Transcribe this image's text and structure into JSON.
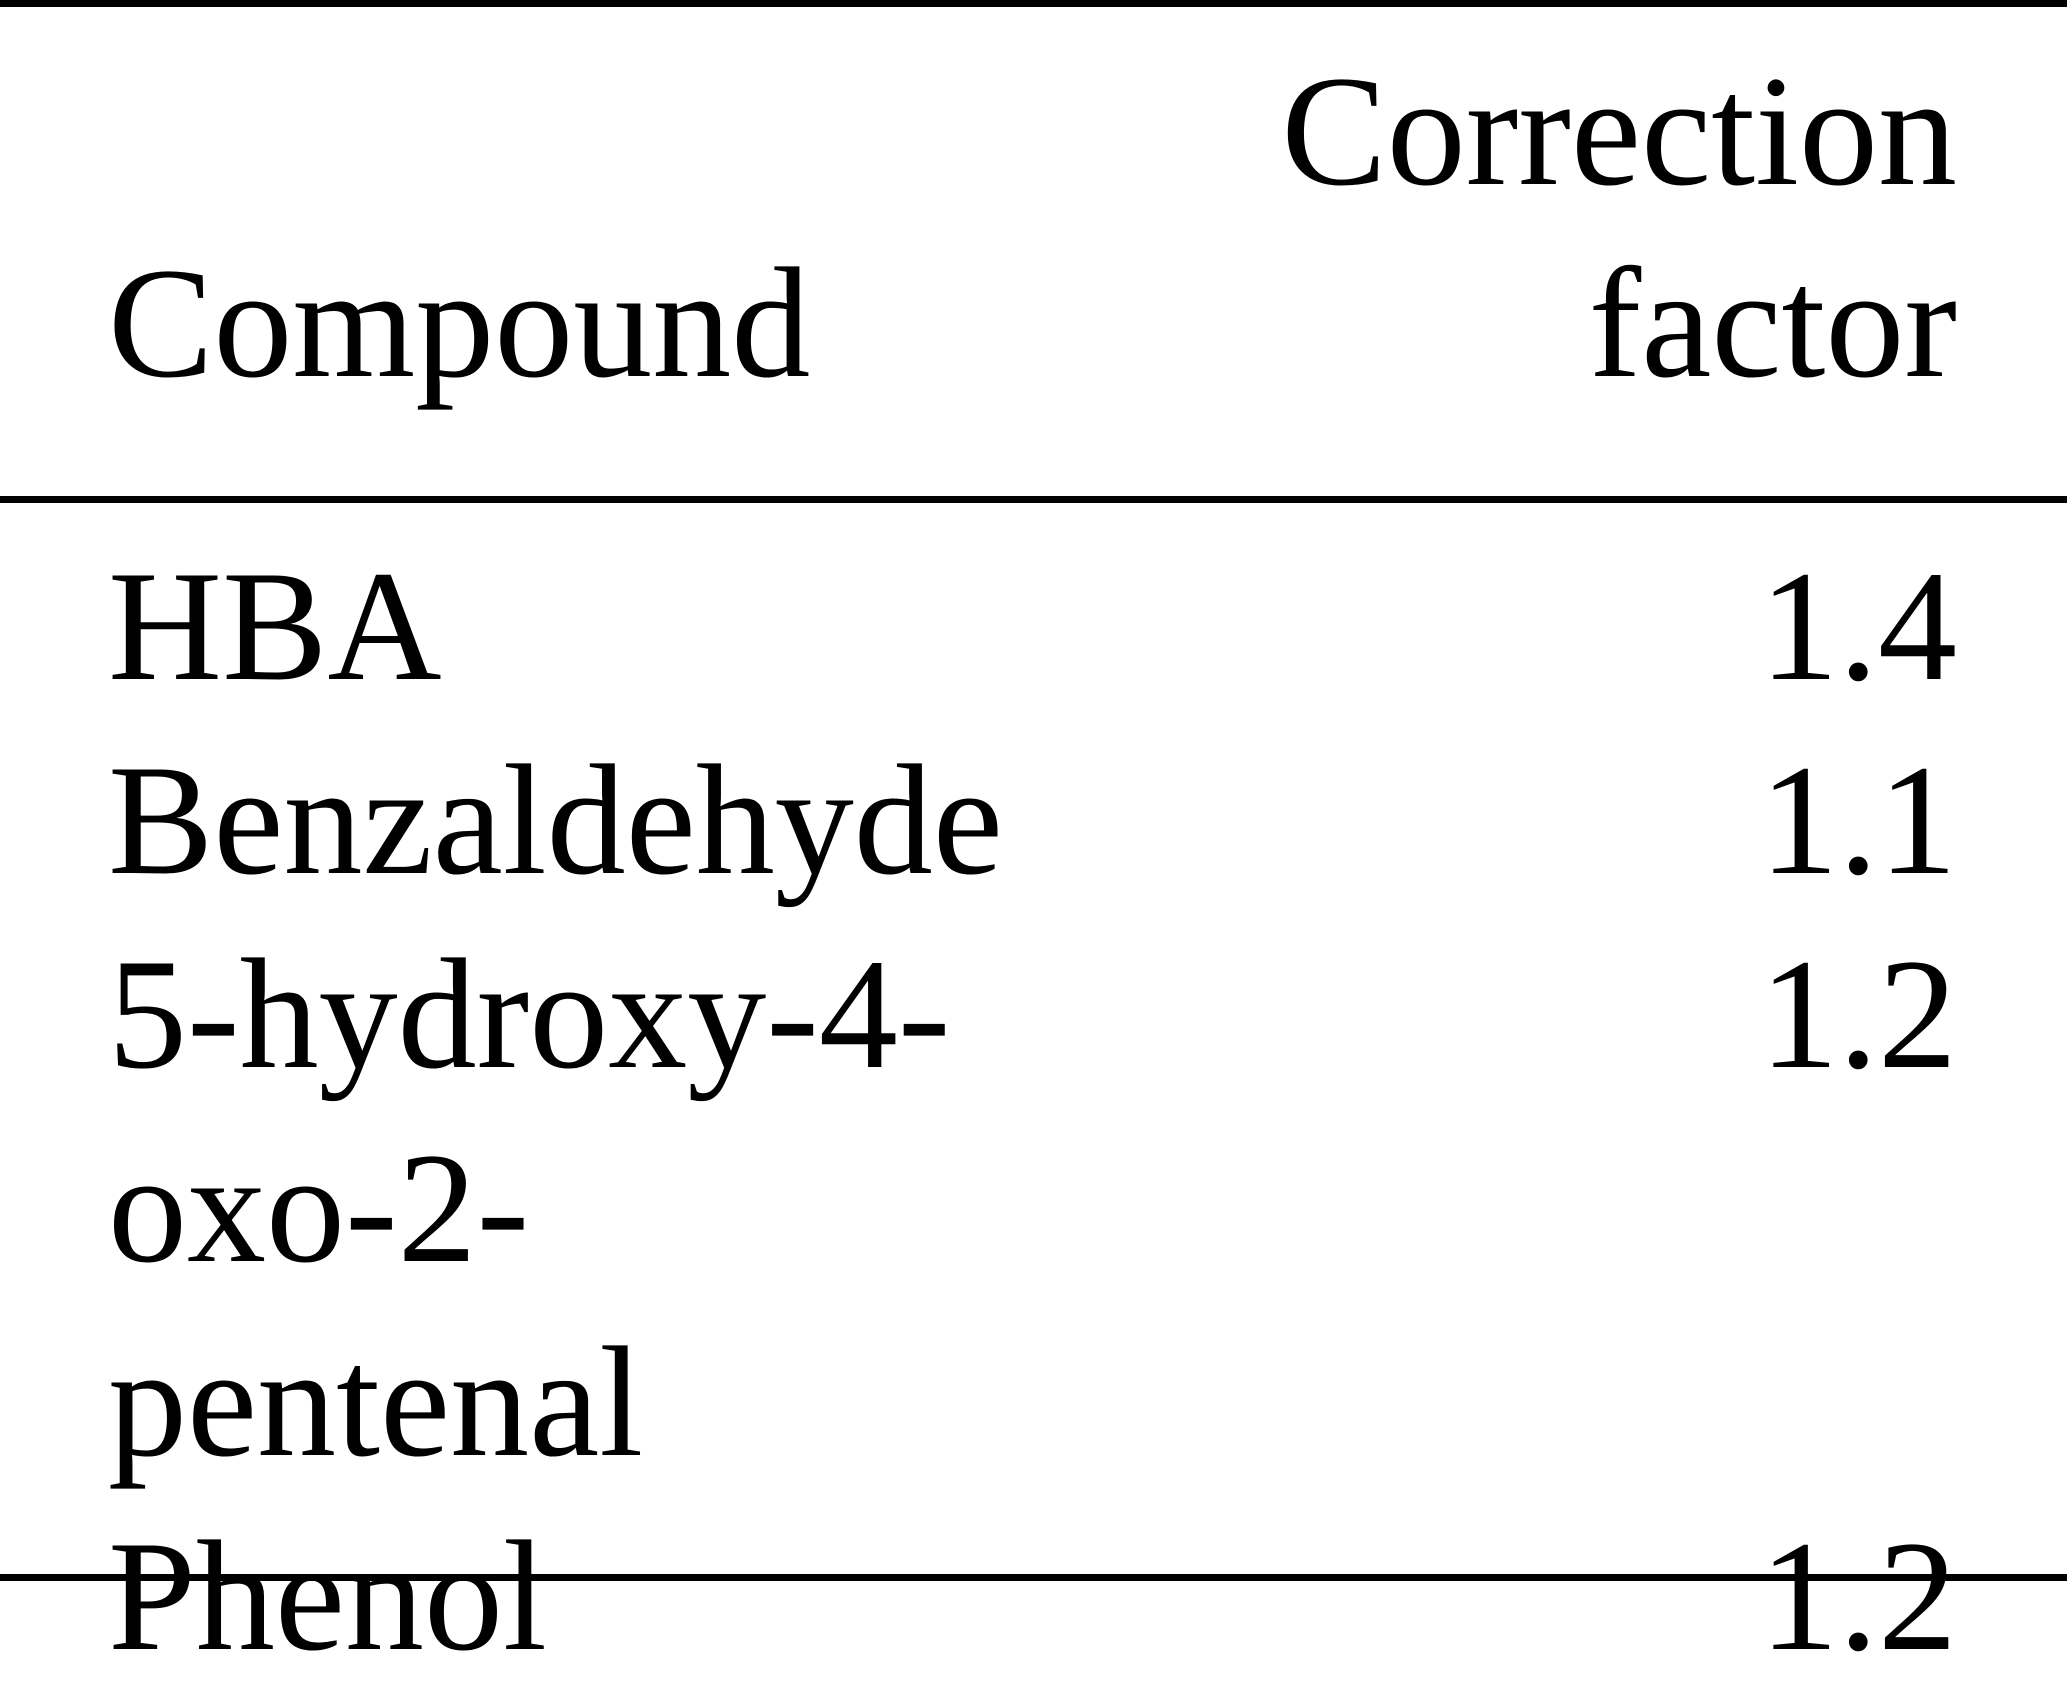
{
  "table": {
    "headers": [
      "Compound",
      "Correction factor"
    ],
    "rows": [
      {
        "compound": "HBA",
        "factor": "1.4"
      },
      {
        "compound": "Benzaldehyde",
        "factor": "1.1"
      },
      {
        "compound": "5-hydroxy-4-oxo-2-pentenal",
        "factor": "1.2"
      },
      {
        "compound": "Phenol",
        "factor": "1.2"
      }
    ]
  }
}
